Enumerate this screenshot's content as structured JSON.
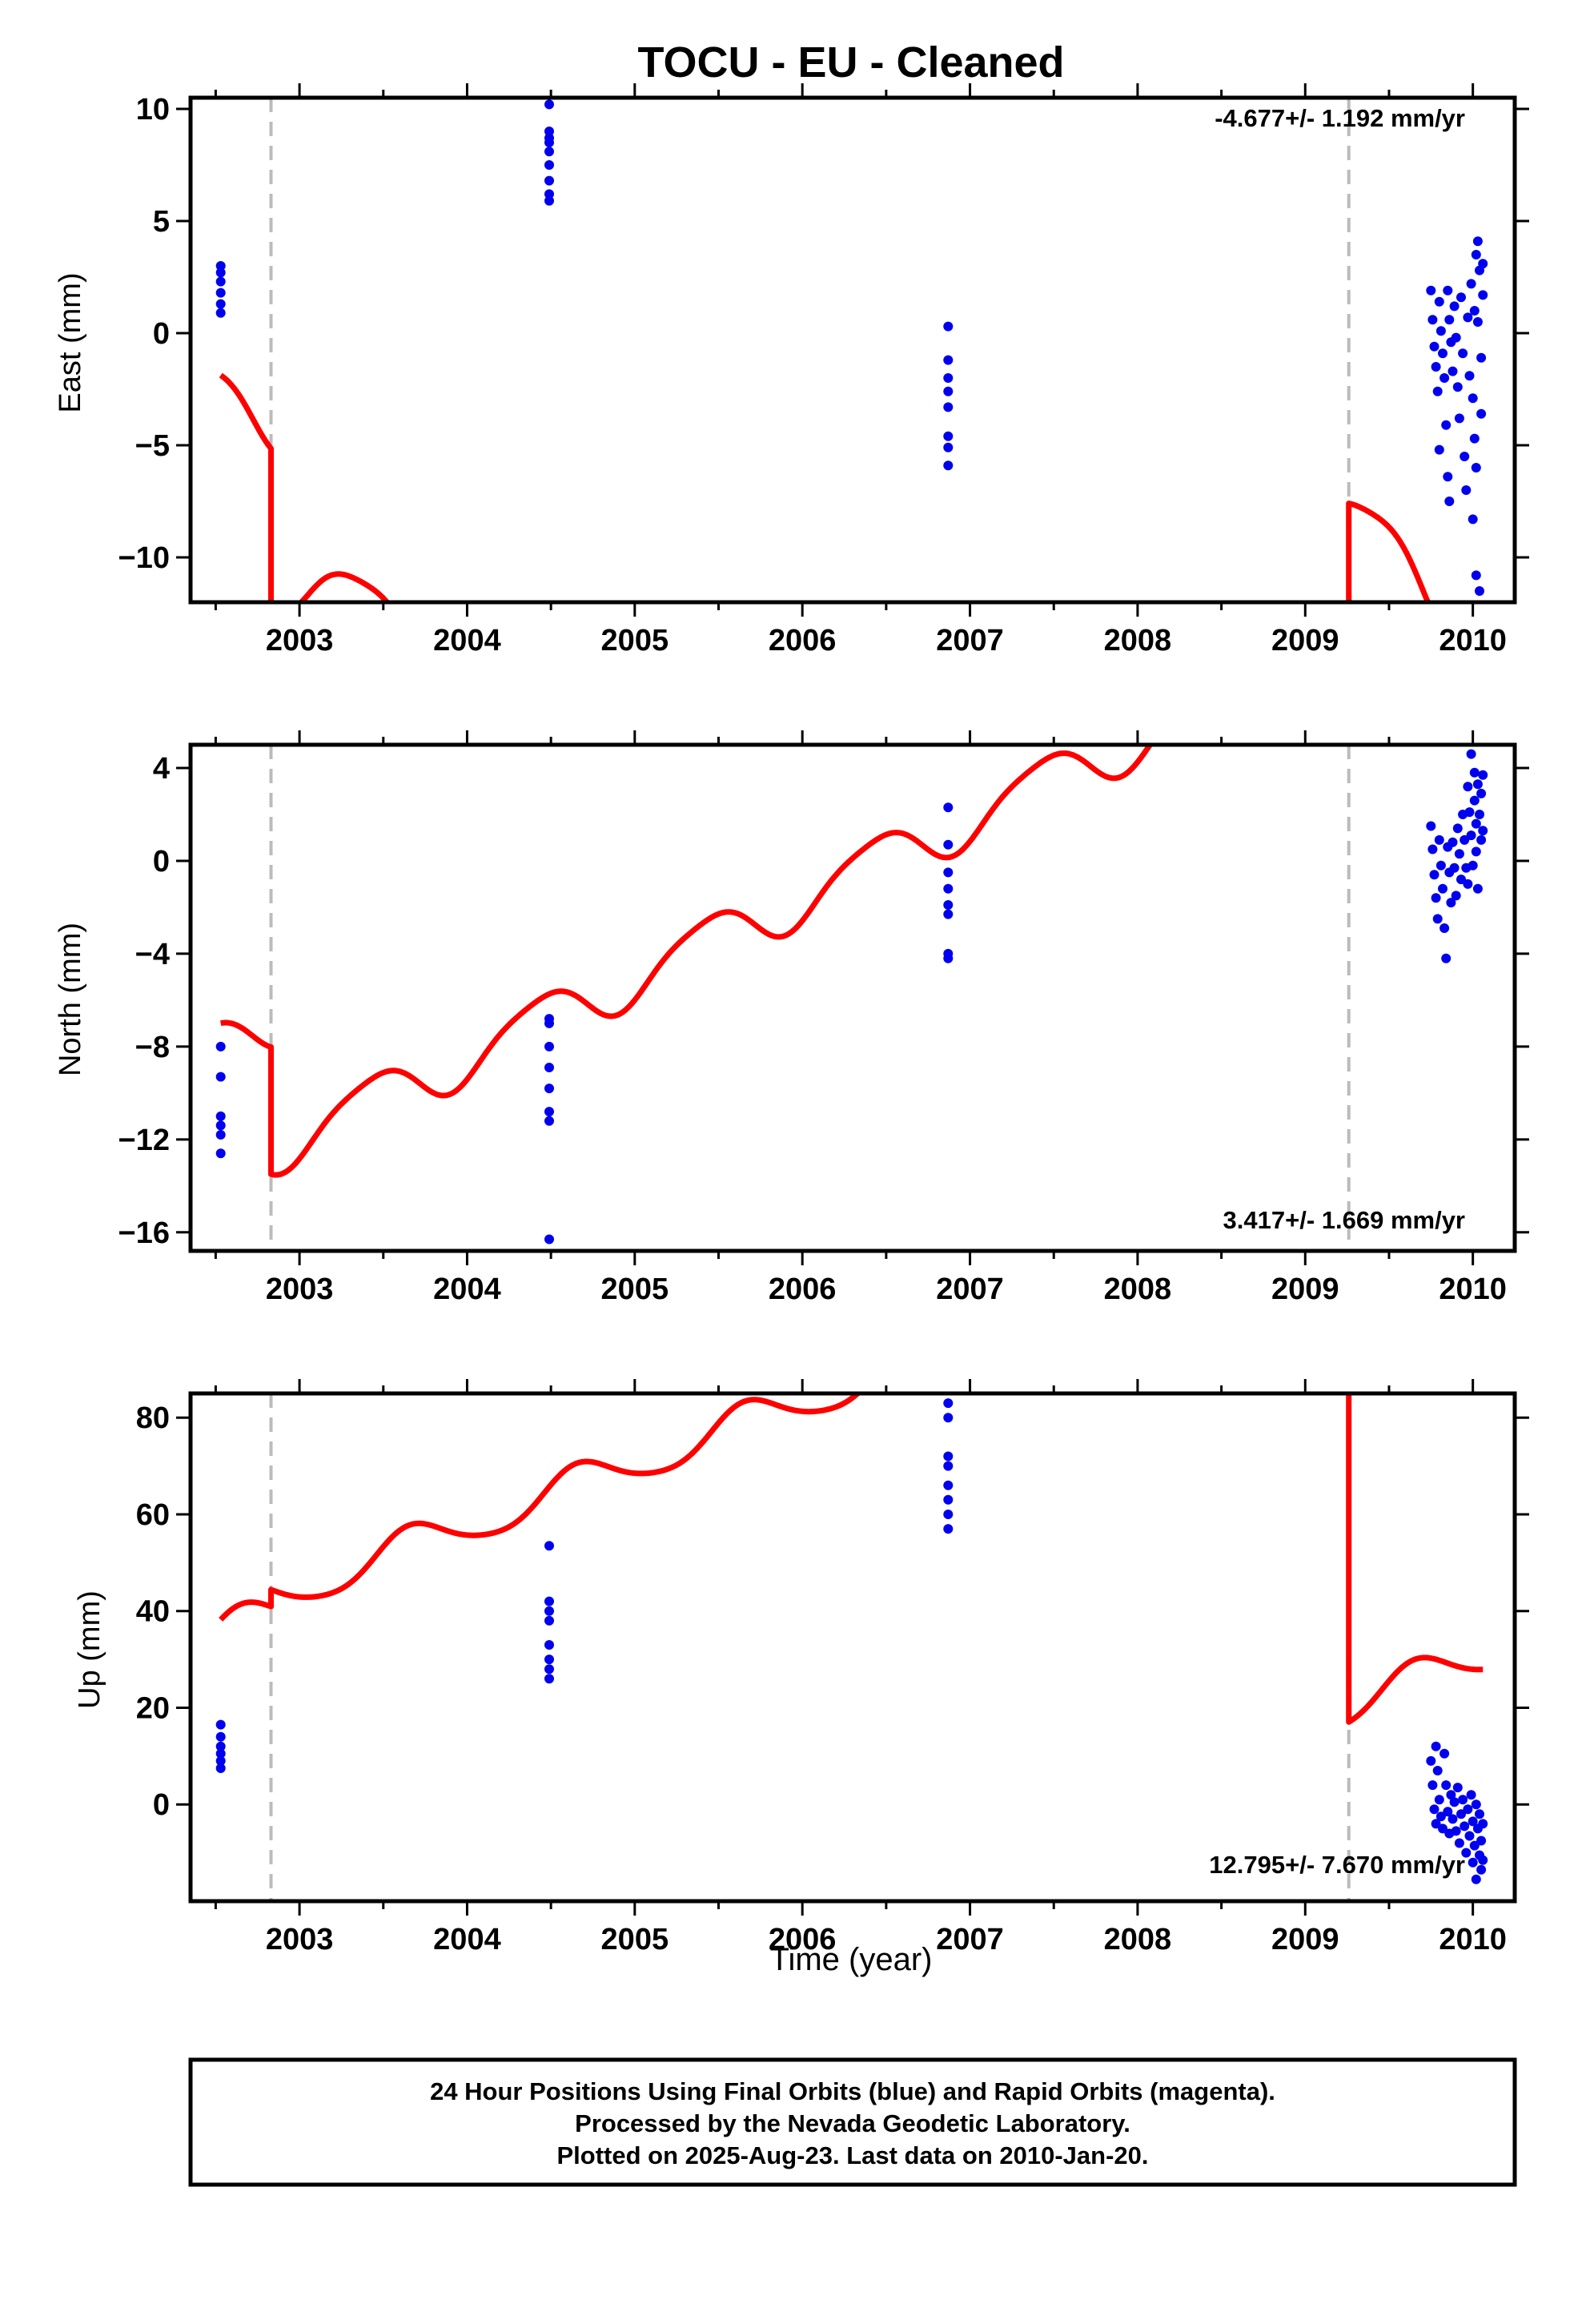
{
  "title": "TOCU  - EU - Cleaned",
  "xlabel": "Time (year)",
  "footer": {
    "line1": "24 Hour Positions Using Final Orbits (blue) and Rapid Orbits (magenta).",
    "line2": "Processed by the Nevada Geodetic Laboratory.",
    "line3": "Plotted on 2025-Aug-23. Last data on 2010-Jan-20."
  },
  "colors": {
    "data": "#0000ee",
    "model": "#ff0000",
    "break": "#bbbbbb",
    "frame": "#000000"
  },
  "chart_data": [
    {
      "type": "scatter",
      "component": "east",
      "ylabel": "East (mm)",
      "rate_text": "-4.677+/- 1.192 mm/yr",
      "xlim": [
        2002.35,
        2010.25
      ],
      "ylim": [
        -12,
        10.5
      ],
      "xticks": [
        2003,
        2004,
        2005,
        2006,
        2007,
        2008,
        2009,
        2010
      ],
      "yticks": [
        -10,
        -5,
        0,
        5,
        10
      ],
      "breaks": [
        2002.83,
        2009.26
      ],
      "points": [
        [
          2002.53,
          3.0
        ],
        [
          2002.53,
          2.7
        ],
        [
          2002.53,
          2.3
        ],
        [
          2002.53,
          1.8
        ],
        [
          2002.53,
          1.3
        ],
        [
          2002.53,
          0.9
        ],
        [
          2004.49,
          10.2
        ],
        [
          2004.49,
          9.0
        ],
        [
          2004.49,
          8.7
        ],
        [
          2004.49,
          8.5
        ],
        [
          2004.49,
          8.1
        ],
        [
          2004.49,
          7.5
        ],
        [
          2004.49,
          6.8
        ],
        [
          2004.49,
          6.2
        ],
        [
          2004.49,
          5.9
        ],
        [
          2006.87,
          0.3
        ],
        [
          2006.87,
          -1.2
        ],
        [
          2006.87,
          -2.0
        ],
        [
          2006.87,
          -2.6
        ],
        [
          2006.87,
          -3.3
        ],
        [
          2006.87,
          -4.6
        ],
        [
          2006.87,
          -5.1
        ],
        [
          2006.87,
          -5.9
        ],
        [
          2009.75,
          1.9
        ],
        [
          2009.76,
          0.6
        ],
        [
          2009.77,
          -0.6
        ],
        [
          2009.78,
          -1.5
        ],
        [
          2009.79,
          -2.6
        ],
        [
          2009.8,
          -5.2
        ],
        [
          2009.8,
          1.4
        ],
        [
          2009.81,
          0.1
        ],
        [
          2009.82,
          -0.9
        ],
        [
          2009.83,
          -2.0
        ],
        [
          2009.84,
          -4.1
        ],
        [
          2009.85,
          1.9
        ],
        [
          2009.85,
          -6.4
        ],
        [
          2009.86,
          0.6
        ],
        [
          2009.86,
          -7.5
        ],
        [
          2009.87,
          -0.4
        ],
        [
          2009.88,
          -1.7
        ],
        [
          2009.89,
          1.2
        ],
        [
          2009.9,
          -0.2
        ],
        [
          2009.91,
          -2.4
        ],
        [
          2009.92,
          -3.8
        ],
        [
          2009.93,
          1.6
        ],
        [
          2009.94,
          -0.9
        ],
        [
          2009.95,
          -5.5
        ],
        [
          2009.96,
          -7.0
        ],
        [
          2009.97,
          0.7
        ],
        [
          2009.98,
          -1.9
        ],
        [
          2009.99,
          2.2
        ],
        [
          2010.0,
          -2.9
        ],
        [
          2010.0,
          -8.3
        ],
        [
          2010.01,
          1.0
        ],
        [
          2010.01,
          -4.7
        ],
        [
          2010.02,
          -6.0
        ],
        [
          2010.02,
          3.5
        ],
        [
          2010.02,
          -10.8
        ],
        [
          2010.03,
          4.1
        ],
        [
          2010.03,
          0.5
        ],
        [
          2010.04,
          -11.5
        ],
        [
          2010.04,
          2.8
        ],
        [
          2010.05,
          -1.1
        ],
        [
          2010.05,
          -3.6
        ],
        [
          2010.06,
          1.7
        ],
        [
          2010.06,
          3.1
        ]
      ],
      "model_segments": [
        {
          "x0": 2002.53,
          "x1": 2002.83,
          "offset": 9.25,
          "slope": -4.677,
          "amp_s": 0.6,
          "amp_c": -0.7,
          "amp_s2": 0.35,
          "amp_c2": 0.0
        },
        {
          "x0": 2002.83,
          "x1": 2009.26,
          "offset": 3.25,
          "slope": -4.677,
          "amp_s": 1.2,
          "amp_c": -1.3,
          "amp_s2": 0.35,
          "amp_c2": 0.0
        },
        {
          "x0": 2009.26,
          "x1": 2010.06,
          "offset": 34.48,
          "slope": -4.677,
          "amp_s": 1.2,
          "amp_c": -1.3,
          "amp_s2": 0.35,
          "amp_c2": 0.0
        }
      ]
    },
    {
      "type": "scatter",
      "component": "north",
      "ylabel": "North (mm)",
      "rate_text": "3.417+/- 1.669 mm/yr",
      "xlim": [
        2002.35,
        2010.25
      ],
      "ylim": [
        -16.8,
        5.0
      ],
      "xticks": [
        2003,
        2004,
        2005,
        2006,
        2007,
        2008,
        2009,
        2010
      ],
      "yticks": [
        -16,
        -12,
        -8,
        -4,
        0,
        4
      ],
      "breaks": [
        2002.83,
        2009.26
      ],
      "points": [
        [
          2002.53,
          -8.0
        ],
        [
          2002.53,
          -9.3
        ],
        [
          2002.53,
          -11.0
        ],
        [
          2002.53,
          -11.4
        ],
        [
          2002.53,
          -11.8
        ],
        [
          2002.53,
          -12.6
        ],
        [
          2004.49,
          -6.8
        ],
        [
          2004.49,
          -7.0
        ],
        [
          2004.49,
          -8.0
        ],
        [
          2004.49,
          -8.9
        ],
        [
          2004.49,
          -9.8
        ],
        [
          2004.49,
          -10.8
        ],
        [
          2004.49,
          -11.2
        ],
        [
          2004.49,
          -16.3
        ],
        [
          2006.87,
          2.3
        ],
        [
          2006.87,
          0.7
        ],
        [
          2006.87,
          -0.5
        ],
        [
          2006.87,
          -1.2
        ],
        [
          2006.87,
          -1.9
        ],
        [
          2006.87,
          -2.3
        ],
        [
          2006.87,
          -4.0
        ],
        [
          2006.87,
          -4.2
        ],
        [
          2009.75,
          1.5
        ],
        [
          2009.76,
          0.5
        ],
        [
          2009.77,
          -0.6
        ],
        [
          2009.78,
          -1.6
        ],
        [
          2009.79,
          -2.5
        ],
        [
          2009.8,
          0.9
        ],
        [
          2009.81,
          -0.2
        ],
        [
          2009.82,
          -1.2
        ],
        [
          2009.83,
          -2.9
        ],
        [
          2009.84,
          -4.2
        ],
        [
          2009.85,
          0.6
        ],
        [
          2009.86,
          -0.5
        ],
        [
          2009.87,
          -1.8
        ],
        [
          2009.88,
          0.8
        ],
        [
          2009.89,
          -0.3
        ],
        [
          2009.9,
          -1.5
        ],
        [
          2009.91,
          1.4
        ],
        [
          2009.92,
          0.3
        ],
        [
          2009.93,
          -0.8
        ],
        [
          2009.94,
          2.0
        ],
        [
          2009.95,
          0.9
        ],
        [
          2009.96,
          -0.3
        ],
        [
          2009.97,
          3.2
        ],
        [
          2009.97,
          -1.0
        ],
        [
          2009.98,
          2.1
        ],
        [
          2009.99,
          4.6
        ],
        [
          2009.99,
          1.1
        ],
        [
          2010.0,
          -0.2
        ],
        [
          2010.01,
          3.8
        ],
        [
          2010.01,
          2.6
        ],
        [
          2010.02,
          1.6
        ],
        [
          2010.02,
          0.4
        ],
        [
          2010.03,
          -1.2
        ],
        [
          2010.03,
          3.3
        ],
        [
          2010.04,
          2.0
        ],
        [
          2010.05,
          0.9
        ],
        [
          2010.05,
          2.9
        ],
        [
          2010.06,
          3.7
        ],
        [
          2010.06,
          1.3
        ]
      ],
      "model_segments": [
        {
          "x0": 2002.53,
          "x1": 2002.83,
          "offset": -16.6,
          "slope": 3.417,
          "amp_s": 0.5,
          "amp_c": -1.0,
          "amp_s2": 0.2,
          "amp_c2": 0.0
        },
        {
          "x0": 2002.83,
          "x1": 2009.26,
          "offset": -22.08,
          "slope": 3.417,
          "amp_s": 0.5,
          "amp_c": -1.0,
          "amp_s2": 0.2,
          "amp_c2": 0.0
        },
        {
          "x0": 2009.26,
          "x1": 2010.06,
          "offset": -26.75,
          "slope": 3.417,
          "amp_s": 0.5,
          "amp_c": -1.0,
          "amp_s2": 0.2,
          "amp_c2": 0.0
        }
      ]
    },
    {
      "type": "scatter",
      "component": "up",
      "ylabel": "Up (mm)",
      "rate_text": "12.795+/- 7.670 mm/yr",
      "xlim": [
        2002.35,
        2010.25
      ],
      "ylim": [
        -20,
        85
      ],
      "xticks": [
        2003,
        2004,
        2005,
        2006,
        2007,
        2008,
        2009,
        2010
      ],
      "yticks": [
        0,
        20,
        40,
        60,
        80
      ],
      "breaks": [
        2002.83,
        2009.26
      ],
      "points": [
        [
          2002.53,
          16.5
        ],
        [
          2002.53,
          14.0
        ],
        [
          2002.53,
          12.0
        ],
        [
          2002.53,
          10.5
        ],
        [
          2002.53,
          9.0
        ],
        [
          2002.53,
          7.5
        ],
        [
          2004.49,
          53.5
        ],
        [
          2004.49,
          42.0
        ],
        [
          2004.49,
          40.0
        ],
        [
          2004.49,
          38.0
        ],
        [
          2004.49,
          33.0
        ],
        [
          2004.49,
          30.0
        ],
        [
          2004.49,
          28.0
        ],
        [
          2004.49,
          26.0
        ],
        [
          2006.87,
          83.0
        ],
        [
          2006.87,
          80.0
        ],
        [
          2006.87,
          72.0
        ],
        [
          2006.87,
          70.0
        ],
        [
          2006.87,
          66.0
        ],
        [
          2006.87,
          63.0
        ],
        [
          2006.87,
          60.0
        ],
        [
          2006.87,
          57.0
        ],
        [
          2009.75,
          9.0
        ],
        [
          2009.76,
          4.0
        ],
        [
          2009.77,
          -1.0
        ],
        [
          2009.78,
          -4.0
        ],
        [
          2009.78,
          12.0
        ],
        [
          2009.79,
          7.0
        ],
        [
          2009.8,
          1.0
        ],
        [
          2009.81,
          -2.5
        ],
        [
          2009.82,
          -5.0
        ],
        [
          2009.83,
          10.5
        ],
        [
          2009.84,
          4.0
        ],
        [
          2009.85,
          -1.5
        ],
        [
          2009.86,
          -6.0
        ],
        [
          2009.87,
          2.0
        ],
        [
          2009.88,
          -3.0
        ],
        [
          2009.89,
          0.5
        ],
        [
          2009.9,
          -5.5
        ],
        [
          2009.91,
          3.5
        ],
        [
          2009.92,
          -8.0
        ],
        [
          2009.93,
          -2.0
        ],
        [
          2009.94,
          1.0
        ],
        [
          2009.95,
          -4.5
        ],
        [
          2009.96,
          -10.0
        ],
        [
          2009.97,
          -1.0
        ],
        [
          2009.98,
          -6.5
        ],
        [
          2009.99,
          2.0
        ],
        [
          2010.0,
          -12.0
        ],
        [
          2010.0,
          -3.5
        ],
        [
          2010.01,
          -8.5
        ],
        [
          2010.02,
          -15.5
        ],
        [
          2010.02,
          0.0
        ],
        [
          2010.03,
          -5.0
        ],
        [
          2010.04,
          -10.5
        ],
        [
          2010.04,
          -2.0
        ],
        [
          2010.05,
          -13.5
        ],
        [
          2010.05,
          -7.5
        ],
        [
          2010.06,
          -4.0
        ],
        [
          2010.06,
          -11.5
        ]
      ],
      "model_segments": [
        {
          "x0": 2002.53,
          "x1": 2002.83,
          "offset": 3.03,
          "slope": 12.795,
          "amp_s": -3.5,
          "amp_c": -2.0,
          "amp_s2": 0.5,
          "amp_c2": 0.0
        },
        {
          "x0": 2002.83,
          "x1": 2009.26,
          "offset": 6.53,
          "slope": 12.795,
          "amp_s": -3.5,
          "amp_c": -2.0,
          "amp_s2": 0.5,
          "amp_c2": 0.0
        },
        {
          "x0": 2009.26,
          "x1": 2010.06,
          "offset": -98.0,
          "slope": 12.795,
          "amp_s": -3.5,
          "amp_c": -2.0,
          "amp_s2": 0.5,
          "amp_c2": 0.0
        }
      ]
    }
  ]
}
